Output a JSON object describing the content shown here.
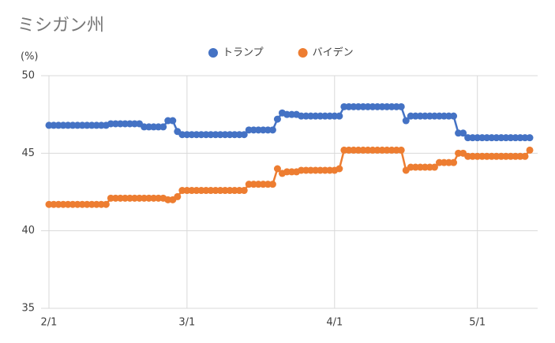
{
  "chart_data": {
    "type": "line",
    "title": "ミシガン州",
    "ylabel": "(%)",
    "categories": [
      "2/1",
      null,
      null,
      null,
      null,
      null,
      null,
      null,
      null,
      null,
      null,
      null,
      null,
      null,
      null,
      null,
      null,
      null,
      null,
      null,
      null,
      null,
      null,
      null,
      null,
      null,
      null,
      null,
      null,
      "3/1",
      null,
      null,
      null,
      null,
      null,
      null,
      null,
      null,
      null,
      null,
      null,
      null,
      null,
      null,
      null,
      null,
      null,
      null,
      null,
      null,
      null,
      null,
      null,
      null,
      null,
      null,
      null,
      null,
      null,
      null,
      "4/1",
      null,
      null,
      null,
      null,
      null,
      null,
      null,
      null,
      null,
      null,
      null,
      null,
      null,
      null,
      null,
      null,
      null,
      null,
      null,
      null,
      null,
      null,
      null,
      null,
      null,
      null,
      null,
      null,
      null,
      "5/1",
      null,
      null,
      null,
      null,
      null,
      null,
      null,
      null,
      null,
      null,
      null
    ],
    "series": [
      {
        "name": "トランプ",
        "color": "#4472c4",
        "values": [
          46.8,
          46.8,
          46.8,
          46.8,
          46.8,
          46.8,
          46.8,
          46.8,
          46.8,
          46.8,
          46.8,
          46.8,
          46.8,
          46.9,
          46.9,
          46.9,
          46.9,
          46.9,
          46.9,
          46.9,
          46.7,
          46.7,
          46.7,
          46.7,
          46.7,
          47.1,
          47.1,
          46.4,
          46.2,
          46.2,
          46.2,
          46.2,
          46.2,
          46.2,
          46.2,
          46.2,
          46.2,
          46.2,
          46.2,
          46.2,
          46.2,
          46.2,
          46.5,
          46.5,
          46.5,
          46.5,
          46.5,
          46.5,
          47.2,
          47.6,
          47.5,
          47.5,
          47.5,
          47.4,
          47.4,
          47.4,
          47.4,
          47.4,
          47.4,
          47.4,
          47.4,
          47.4,
          48.0,
          48.0,
          48.0,
          48.0,
          48.0,
          48.0,
          48.0,
          48.0,
          48.0,
          48.0,
          48.0,
          48.0,
          48.0,
          47.1,
          47.4,
          47.4,
          47.4,
          47.4,
          47.4,
          47.4,
          47.4,
          47.4,
          47.4,
          47.4,
          46.3,
          46.3,
          46.0,
          46.0,
          46.0,
          46.0,
          46.0,
          46.0,
          46.0,
          46.0,
          46.0,
          46.0,
          46.0,
          46.0,
          46.0,
          46.0
        ]
      },
      {
        "name": "バイデン",
        "color": "#ed7d31",
        "values": [
          41.7,
          41.7,
          41.7,
          41.7,
          41.7,
          41.7,
          41.7,
          41.7,
          41.7,
          41.7,
          41.7,
          41.7,
          41.7,
          42.1,
          42.1,
          42.1,
          42.1,
          42.1,
          42.1,
          42.1,
          42.1,
          42.1,
          42.1,
          42.1,
          42.1,
          42.0,
          42.0,
          42.2,
          42.6,
          42.6,
          42.6,
          42.6,
          42.6,
          42.6,
          42.6,
          42.6,
          42.6,
          42.6,
          42.6,
          42.6,
          42.6,
          42.6,
          43.0,
          43.0,
          43.0,
          43.0,
          43.0,
          43.0,
          44.0,
          43.7,
          43.8,
          43.8,
          43.8,
          43.9,
          43.9,
          43.9,
          43.9,
          43.9,
          43.9,
          43.9,
          43.9,
          44.0,
          45.2,
          45.2,
          45.2,
          45.2,
          45.2,
          45.2,
          45.2,
          45.2,
          45.2,
          45.2,
          45.2,
          45.2,
          45.2,
          43.9,
          44.1,
          44.1,
          44.1,
          44.1,
          44.1,
          44.1,
          44.4,
          44.4,
          44.4,
          44.4,
          45.0,
          45.0,
          44.8,
          44.8,
          44.8,
          44.8,
          44.8,
          44.8,
          44.8,
          44.8,
          44.8,
          44.8,
          44.8,
          44.8,
          44.8,
          45.2
        ]
      }
    ],
    "ylim": [
      35,
      50
    ],
    "yticks": [
      35,
      40,
      45,
      50
    ],
    "grid": true,
    "legend": "top"
  }
}
